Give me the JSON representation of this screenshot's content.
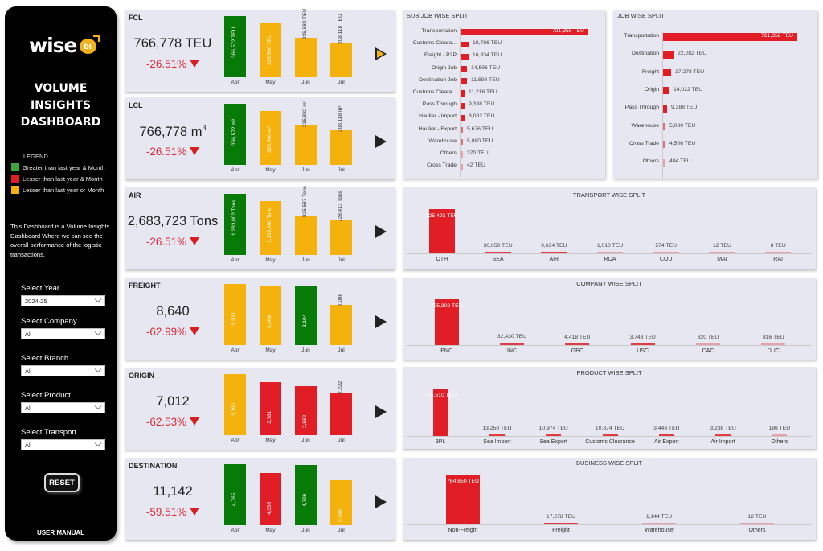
{
  "sidebar": {
    "logo_text": "wise",
    "logo_badge": "bi",
    "title_lines": [
      "VOLUME",
      "INSIGHTS",
      "DASHBOARD"
    ],
    "legend": {
      "title": "LEGEND",
      "items": [
        {
          "label": "Greater than last year & Month",
          "color": "#3ea63e"
        },
        {
          "label": "Lesser than last year & Month",
          "color": "#e11d25"
        },
        {
          "label": "Lesser than last year or Month",
          "color": "#f5b10c"
        }
      ]
    },
    "description": "This Dashboard is a Volume Insights Dashboard Where we can see the overall performance of the logistic transactions.",
    "filters": [
      {
        "label": "Select Year",
        "value": "2024-25"
      },
      {
        "label": "Select Company",
        "value": "All"
      },
      {
        "label": "Select Branch",
        "value": "All"
      },
      {
        "label": "Select Product",
        "value": "All"
      },
      {
        "label": "Select Transport",
        "value": "All"
      }
    ],
    "reset_label": "RESET",
    "user_manual_label": "USER MANUAL"
  },
  "colors": {
    "green": "#077a07",
    "red": "#e11d25",
    "amber": "#f5b10c",
    "delta_red": "#d62d3a",
    "card_bg": "#e6e7f0"
  },
  "kpis": [
    {
      "title": "FCL",
      "value": "766,778 TEU",
      "unit_sup": "",
      "delta": "-26.51%",
      "direction": "down",
      "active": true,
      "months": [
        {
          "month": "Apr",
          "value": 366572,
          "label": "366,572 TEU",
          "color": "green"
        },
        {
          "month": "May",
          "value": 325560,
          "label": "325,560 TEU",
          "color": "amber"
        },
        {
          "month": "Jun",
          "value": 235882,
          "label": "235,882 TEU",
          "color": "amber"
        },
        {
          "month": "Jul",
          "value": 208118,
          "label": "208,118 TEU",
          "color": "amber"
        }
      ]
    },
    {
      "title": "LCL",
      "value": "766,778 m",
      "unit_sup": "3",
      "delta": "-26.51%",
      "direction": "down",
      "active": false,
      "months": [
        {
          "month": "Apr",
          "value": 366572,
          "label": "366,572 m³",
          "color": "green"
        },
        {
          "month": "May",
          "value": 325560,
          "label": "325,560 m³",
          "color": "amber"
        },
        {
          "month": "Jun",
          "value": 235882,
          "label": "235,882 m³",
          "color": "amber"
        },
        {
          "month": "Jul",
          "value": 208118,
          "label": "208,118 m³",
          "color": "amber"
        }
      ]
    },
    {
      "title": "AIR",
      "value": "2,683,723 Tons",
      "unit_sup": "",
      "delta": "-26.51%",
      "direction": "down",
      "active": false,
      "months": [
        {
          "month": "Apr",
          "value": 1283002,
          "label": "1,283,002 Tons",
          "color": "green"
        },
        {
          "month": "May",
          "value": 1139460,
          "label": "1,139,460 Tons",
          "color": "amber"
        },
        {
          "month": "Jun",
          "value": 825587,
          "label": "825,587 Tons",
          "color": "amber"
        },
        {
          "month": "Jul",
          "value": 728413,
          "label": "728,413 Tons",
          "color": "amber"
        }
      ]
    },
    {
      "title": "FREIGHT",
      "value": "8,640",
      "unit_sup": "",
      "delta": "-62.99%",
      "direction": "down",
      "active": false,
      "months": [
        {
          "month": "Apr",
          "value": 3200,
          "label": "3,200",
          "color": "amber"
        },
        {
          "month": "May",
          "value": 3069,
          "label": "3,069",
          "color": "amber"
        },
        {
          "month": "Jun",
          "value": 3104,
          "label": "3,104",
          "color": "green"
        },
        {
          "month": "Jul",
          "value": 2086,
          "label": "2,086",
          "color": "amber"
        }
      ]
    },
    {
      "title": "ORIGIN",
      "value": "7,012",
      "unit_sup": "",
      "delta": "-62.53%",
      "direction": "down",
      "active": false,
      "months": [
        {
          "month": "Apr",
          "value": 3196,
          "label": "3,196",
          "color": "amber"
        },
        {
          "month": "May",
          "value": 2781,
          "label": "2,781",
          "color": "red"
        },
        {
          "month": "Jun",
          "value": 2582,
          "label": "2,582",
          "color": "red"
        },
        {
          "month": "Jul",
          "value": 2222,
          "label": "2,222",
          "color": "red"
        }
      ]
    },
    {
      "title": "DESTINATION",
      "value": "11,142",
      "unit_sup": "",
      "delta": "-59.51%",
      "direction": "down",
      "active": false,
      "months": [
        {
          "month": "Apr",
          "value": 4765,
          "label": "4,765",
          "color": "green"
        },
        {
          "month": "May",
          "value": 4055,
          "label": "4,055",
          "color": "red"
        },
        {
          "month": "Jun",
          "value": 4706,
          "label": "4,706",
          "color": "green"
        },
        {
          "month": "Jul",
          "value": 3495,
          "label": "3,495",
          "color": "amber"
        }
      ]
    }
  ],
  "chart_data": [
    {
      "type": "bar",
      "orientation": "horizontal",
      "title": "SUB JOB WISE SPLIT",
      "categories": [
        "Transportation",
        "Customs Cleara...",
        "Freight - P2P",
        "Origin Job",
        "Destination Job",
        "Customs Cleara...",
        "Pass Through",
        "Haulier - Import",
        "Haulier - Export",
        "Warehouse",
        "Others",
        "Cross Trade"
      ],
      "values": [
        721358,
        18786,
        16834,
        14596,
        11598,
        11216,
        9388,
        8082,
        5676,
        5080,
        370,
        42
      ],
      "labels": [
        "721,358 TEU",
        "18,786 TEU",
        "16,834 TEU",
        "14,596 TEU",
        "11,598 TEU",
        "11,216 TEU",
        "9,388 TEU",
        "8,082 TEU",
        "5,676 TEU",
        "5,080 TEU",
        "370 TEU",
        "42 TEU"
      ],
      "unit": "TEU"
    },
    {
      "type": "bar",
      "orientation": "horizontal",
      "title": "JOB WISE SPLIT",
      "categories": [
        "Transportation",
        "Destination",
        "Freight",
        "Origin",
        "Pass Through",
        "Warehouse",
        "Cross Trade",
        "Others"
      ],
      "values": [
        721358,
        22282,
        17278,
        14022,
        9388,
        5080,
        4506,
        404
      ],
      "labels": [
        "721,358 TEU",
        "22,282 TEU",
        "17,278 TEU",
        "14,022 TEU",
        "9,388 TEU",
        "5,080 TEU",
        "4,506 TEU",
        "404 TEU"
      ],
      "unit": "TEU"
    },
    {
      "type": "bar",
      "orientation": "vertical",
      "title": "TRANSPORT WISE SPLIT",
      "categories": [
        "OTH",
        "SEA",
        "AIR",
        "ROA",
        "COU",
        "MAI",
        "RAI"
      ],
      "values": [
        725492,
        30050,
        9634,
        1010,
        574,
        12,
        8
      ],
      "labels": [
        "725,492 TEU",
        "30,050 TEU",
        "9,634 TEU",
        "1,010 TEU",
        "574 TEU",
        "12 TEU",
        "8 TEU"
      ],
      "unit": "TEU"
    },
    {
      "type": "bar",
      "orientation": "vertical",
      "title": "COMPANY WISE SPLIT",
      "categories": [
        "ENC",
        "INC",
        "GEC",
        "USC",
        "CAC",
        "DUC"
      ],
      "values": [
        725302,
        32430,
        4418,
        3748,
        820,
        816
      ],
      "labels": [
        "725,302 TEU",
        "32,430 TEU",
        "4,418 TEU",
        "3,748 TEU",
        "820 TEU",
        "816 TEU"
      ],
      "unit": "TEU"
    },
    {
      "type": "bar",
      "orientation": "vertical",
      "title": "PRODUCT WISE SPLIT",
      "categories": [
        "3PL",
        "Sea Import",
        "Sea Export",
        "Customs Clearance",
        "Air Export",
        "Air Import",
        "Others"
      ],
      "values": [
        725510,
        13250,
        10974,
        10874,
        3446,
        3238,
        186
      ],
      "labels": [
        "725,510 TEU",
        "13,250 TEU",
        "10,974 TEU",
        "10,874 TEU",
        "3,446 TEU",
        "3,238 TEU",
        "186 TEU"
      ],
      "unit": "TEU"
    },
    {
      "type": "bar",
      "orientation": "vertical",
      "title": "BUSINESS WISE SPLIT",
      "categories": [
        "Non-Freight",
        "Freight",
        "Warehouse",
        "Others"
      ],
      "values": [
        764850,
        17278,
        1144,
        12
      ],
      "labels": [
        "764,850 TEU",
        "17,278 TEU",
        "1,144 TEU",
        "12 TEU"
      ],
      "unit": "TEU"
    }
  ]
}
